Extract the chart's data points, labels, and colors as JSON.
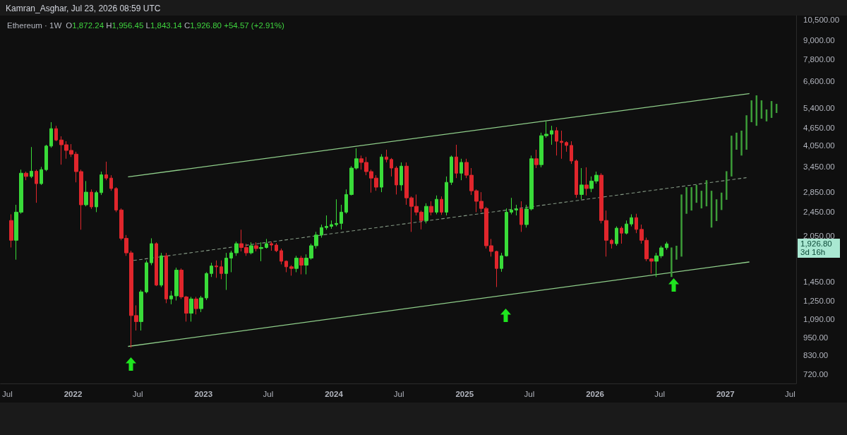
{
  "chart_data": {
    "type": "candlestick",
    "title": "Ethereum · 1W",
    "annotations": [
      "Kamran_Asghar, Jul 23, 2026 08:59 UTC",
      "O1,872.24 H1,956.45 L1,843.14 C1,926.80 +54.57 (+2.91%)",
      "1,926.80",
      "3d 16h"
    ],
    "log": true,
    "xlim": [
      "2021-06-12",
      "2027-07-18"
    ],
    "xticks": [
      {
        "value": "2021-07-01",
        "label": "Jul"
      },
      {
        "value": "2022-01-01",
        "label": "2022"
      },
      {
        "value": "2022-07-01",
        "label": "Jul"
      },
      {
        "value": "2023-01-01",
        "label": "2023"
      },
      {
        "value": "2023-07-01",
        "label": "Jul"
      },
      {
        "value": "2024-01-01",
        "label": "2024"
      },
      {
        "value": "2024-07-01",
        "label": "Jul"
      },
      {
        "value": "2025-01-01",
        "label": "2025"
      },
      {
        "value": "2025-07-01",
        "label": "Jul"
      },
      {
        "value": "2026-01-01",
        "label": "2026"
      },
      {
        "value": "2026-07-01",
        "label": "Jul"
      },
      {
        "value": "2027-01-01",
        "label": "2027"
      },
      {
        "value": "2027-07-01",
        "label": "Jul"
      }
    ],
    "ylim": [
      670,
      10850
    ],
    "yticks": [
      {
        "value": 720,
        "label": "720.00"
      },
      {
        "value": 830,
        "label": "830.00"
      },
      {
        "value": 950,
        "label": "950.00"
      },
      {
        "value": 1090,
        "label": "1,090.00"
      },
      {
        "value": 1250,
        "label": "1,250.00"
      },
      {
        "value": 1450,
        "label": "1,450.00"
      },
      {
        "value": 2050,
        "label": "2,050.00"
      },
      {
        "value": 2450,
        "label": "2,450.00"
      },
      {
        "value": 2850,
        "label": "2,850.00"
      },
      {
        "value": 3450,
        "label": "3,450.00"
      },
      {
        "value": 4050,
        "label": "4,050.00"
      },
      {
        "value": 4650,
        "label": "4,650.00"
      },
      {
        "value": 5400,
        "label": "5,400.00"
      },
      {
        "value": 6600,
        "label": "6,600.00"
      },
      {
        "value": 7800,
        "label": "7,800.00"
      },
      {
        "value": 9000,
        "label": "9,000.00"
      },
      {
        "value": 10500,
        "label": "10,500.00"
      }
    ],
    "series": [
      {
        "x": [
          "2021-07-12",
          "2021-07-26",
          "2021-08-09",
          "2021-08-23",
          "2021-09-06",
          "2021-09-20",
          "2021-10-04",
          "2021-10-18",
          "2021-11-01",
          "2021-11-15",
          "2021-11-29",
          "2021-12-13",
          "2021-12-27",
          "2022-01-10",
          "2022-01-24",
          "2022-02-07",
          "2022-02-21",
          "2022-03-07",
          "2022-03-21",
          "2022-04-04",
          "2022-04-18",
          "2022-05-02",
          "2022-05-16",
          "2022-05-30",
          "2022-06-13",
          "2022-06-27",
          "2022-07-11",
          "2022-07-25",
          "2022-08-08",
          "2022-08-22",
          "2022-09-05",
          "2022-09-19",
          "2022-10-03",
          "2022-10-17",
          "2022-10-31",
          "2022-11-14",
          "2022-11-28",
          "2022-12-12",
          "2022-12-26",
          "2023-01-09",
          "2023-01-23",
          "2023-02-06",
          "2023-02-20",
          "2023-03-06",
          "2023-03-20",
          "2023-04-03",
          "2023-04-17",
          "2023-05-01",
          "2023-05-15",
          "2023-05-29",
          "2023-06-12",
          "2023-06-26",
          "2023-07-10",
          "2023-07-24",
          "2023-08-07",
          "2023-08-21",
          "2023-09-04",
          "2023-09-18",
          "2023-10-02",
          "2023-10-16",
          "2023-10-30",
          "2023-11-13",
          "2023-11-27",
          "2023-12-11",
          "2023-12-25",
          "2024-01-08",
          "2024-01-22",
          "2024-02-05",
          "2024-02-19",
          "2024-03-04",
          "2024-03-18",
          "2024-04-01",
          "2024-04-15",
          "2024-04-29",
          "2024-05-13",
          "2024-05-27",
          "2024-06-10",
          "2024-06-24",
          "2024-07-08",
          "2024-07-22",
          "2024-08-05",
          "2024-08-19",
          "2024-09-02",
          "2024-09-16",
          "2024-09-30",
          "2024-10-14",
          "2024-10-28",
          "2024-11-11",
          "2024-11-25",
          "2024-12-09",
          "2024-12-23",
          "2025-01-06",
          "2025-01-20",
          "2025-02-03",
          "2025-02-17",
          "2025-03-03",
          "2025-03-17",
          "2025-03-31",
          "2025-04-14",
          "2025-04-28",
          "2025-05-12",
          "2025-05-26",
          "2025-06-09",
          "2025-06-23",
          "2025-07-07",
          "2025-07-21",
          "2025-08-04",
          "2025-08-18",
          "2025-09-01",
          "2025-09-15",
          "2025-09-29",
          "2025-10-13",
          "2025-10-27",
          "2025-11-10",
          "2025-11-24",
          "2025-12-08",
          "2025-12-22",
          "2026-01-05",
          "2026-01-19",
          "2026-02-02",
          "2026-02-16",
          "2026-03-02",
          "2026-03-16",
          "2026-03-30",
          "2026-04-13",
          "2026-04-27",
          "2026-05-11",
          "2026-05-25",
          "2026-06-08",
          "2026-06-22",
          "2026-07-06",
          "2026-07-20"
        ],
        "ohlc": [
          [
            2300,
            2410,
            1875,
            1980
          ],
          [
            1980,
            2590,
            1710,
            2450
          ],
          [
            2450,
            3380,
            2420,
            3290
          ],
          [
            3290,
            3330,
            3120,
            3210
          ],
          [
            3210,
            4010,
            3170,
            3340
          ],
          [
            3340,
            3380,
            2630,
            3040
          ],
          [
            3040,
            3450,
            3010,
            3380
          ],
          [
            3380,
            4080,
            3340,
            4040
          ],
          [
            4040,
            4840,
            3990,
            4610
          ],
          [
            4610,
            4710,
            4190,
            4230
          ],
          [
            4230,
            4350,
            3510,
            4080
          ],
          [
            4080,
            4190,
            3670,
            3910
          ],
          [
            3910,
            4100,
            3720,
            3800
          ],
          [
            3800,
            3870,
            3070,
            3330
          ],
          [
            3330,
            3380,
            2145,
            2590
          ],
          [
            2590,
            3100,
            2560,
            2850
          ],
          [
            2850,
            2910,
            2510,
            2550
          ],
          [
            2550,
            2880,
            2450,
            2840
          ],
          [
            2840,
            3330,
            2790,
            3250
          ],
          [
            3250,
            3590,
            3120,
            3170
          ],
          [
            3170,
            3240,
            2880,
            2930
          ],
          [
            2930,
            2960,
            2450,
            2490
          ],
          [
            2490,
            2520,
            1980,
            2010
          ],
          [
            2010,
            2060,
            1760,
            1800
          ],
          [
            1800,
            1830,
            878,
            1120
          ],
          [
            1120,
            1210,
            1000,
            1070
          ],
          [
            1070,
            1360,
            1000,
            1340
          ],
          [
            1340,
            1700,
            1325,
            1670
          ],
          [
            1670,
            2010,
            1640,
            1930
          ],
          [
            1930,
            1950,
            1400,
            1410
          ],
          [
            1410,
            1800,
            1390,
            1760
          ],
          [
            1760,
            1800,
            1230,
            1270
          ],
          [
            1270,
            1350,
            1220,
            1300
          ],
          [
            1300,
            1610,
            1255,
            1580
          ],
          [
            1580,
            1600,
            1270,
            1290
          ],
          [
            1290,
            1300,
            1070,
            1140
          ],
          [
            1140,
            1290,
            1070,
            1270
          ],
          [
            1270,
            1290,
            1130,
            1180
          ],
          [
            1180,
            1300,
            1150,
            1280
          ],
          [
            1280,
            1555,
            1260,
            1540
          ],
          [
            1540,
            1670,
            1500,
            1630
          ],
          [
            1630,
            1700,
            1490,
            1620
          ],
          [
            1620,
            1700,
            1475,
            1540
          ],
          [
            1540,
            1800,
            1360,
            1730
          ],
          [
            1730,
            1830,
            1555,
            1800
          ],
          [
            1800,
            1960,
            1760,
            1930
          ],
          [
            1930,
            2145,
            1820,
            1875
          ],
          [
            1875,
            1930,
            1760,
            1800
          ],
          [
            1800,
            1950,
            1780,
            1900
          ],
          [
            1900,
            1950,
            1820,
            1860
          ],
          [
            1860,
            1950,
            1690,
            1875
          ],
          [
            1875,
            2000,
            1860,
            1930
          ],
          [
            1930,
            1960,
            1830,
            1910
          ],
          [
            1910,
            1940,
            1810,
            1830
          ],
          [
            1830,
            1860,
            1650,
            1690
          ],
          [
            1690,
            1700,
            1555,
            1620
          ],
          [
            1620,
            1640,
            1515,
            1600
          ],
          [
            1600,
            1760,
            1555,
            1730
          ],
          [
            1730,
            1760,
            1530,
            1640
          ],
          [
            1640,
            1780,
            1530,
            1730
          ],
          [
            1730,
            1930,
            1710,
            1900
          ],
          [
            1900,
            2110,
            1860,
            2060
          ],
          [
            2060,
            2230,
            2020,
            2180
          ],
          [
            2180,
            2390,
            2145,
            2200
          ],
          [
            2200,
            2300,
            2160,
            2230
          ],
          [
            2230,
            2700,
            2200,
            2250
          ],
          [
            2250,
            2590,
            2150,
            2450
          ],
          [
            2450,
            2910,
            2420,
            2800
          ],
          [
            2800,
            3470,
            2780,
            3420
          ],
          [
            3420,
            3970,
            3380,
            3670
          ],
          [
            3670,
            3760,
            3380,
            3570
          ],
          [
            3570,
            3720,
            3240,
            3330
          ],
          [
            3330,
            3380,
            2840,
            3170
          ],
          [
            3170,
            3240,
            2880,
            2960
          ],
          [
            2960,
            3800,
            2850,
            3720
          ],
          [
            3720,
            3930,
            3570,
            3650
          ],
          [
            3650,
            3690,
            3210,
            3420
          ],
          [
            3420,
            3470,
            2800,
            3010
          ],
          [
            3010,
            3570,
            2880,
            3470
          ],
          [
            3470,
            3570,
            2590,
            2730
          ],
          [
            2730,
            2760,
            2110,
            2560
          ],
          [
            2560,
            2800,
            2390,
            2450
          ],
          [
            2450,
            2480,
            2150,
            2300
          ],
          [
            2300,
            2620,
            2250,
            2560
          ],
          [
            2560,
            2660,
            2390,
            2450
          ],
          [
            2450,
            2780,
            2410,
            2700
          ],
          [
            2700,
            2760,
            2400,
            2450
          ],
          [
            2450,
            3210,
            2390,
            3070
          ],
          [
            3070,
            3760,
            3010,
            3720
          ],
          [
            3720,
            4080,
            3170,
            3290
          ],
          [
            3290,
            3670,
            3120,
            3570
          ],
          [
            3570,
            3670,
            3170,
            3240
          ],
          [
            3240,
            3420,
            2790,
            2880
          ],
          [
            2880,
            2910,
            2450,
            2660
          ],
          [
            2660,
            2850,
            2450,
            2520
          ],
          [
            2520,
            2550,
            1860,
            1900
          ],
          [
            1900,
            2000,
            1750,
            1820
          ],
          [
            1820,
            1830,
            1390,
            1600
          ],
          [
            1600,
            1800,
            1560,
            1760
          ],
          [
            1760,
            2520,
            1750,
            2450
          ],
          [
            2450,
            2730,
            2410,
            2490
          ],
          [
            2490,
            2590,
            2390,
            2510
          ],
          [
            2510,
            2660,
            2110,
            2230
          ],
          [
            2230,
            2590,
            2180,
            2510
          ],
          [
            2510,
            3760,
            2480,
            3670
          ],
          [
            3670,
            3930,
            3420,
            3510
          ],
          [
            3510,
            4470,
            3440,
            4370
          ],
          [
            4370,
            4870,
            4300,
            4420
          ],
          [
            4420,
            4710,
            4080,
            4540
          ],
          [
            4540,
            4660,
            3760,
            4190
          ],
          [
            4190,
            4540,
            3670,
            4150
          ],
          [
            4150,
            4190,
            3870,
            4060
          ],
          [
            4060,
            4190,
            3530,
            3610
          ],
          [
            3610,
            3650,
            2730,
            2800
          ],
          [
            2800,
            3420,
            2700,
            3010
          ],
          [
            3010,
            3440,
            2780,
            2930
          ],
          [
            2930,
            3210,
            2850,
            3100
          ],
          [
            3100,
            3330,
            3040,
            3240
          ],
          [
            3240,
            3290,
            2250,
            2300
          ],
          [
            2300,
            2480,
            1750,
            1980
          ],
          [
            1980,
            2000,
            1860,
            1930
          ],
          [
            1930,
            2200,
            1900,
            2170
          ],
          [
            2170,
            2200,
            1930,
            2090
          ],
          [
            2090,
            2300,
            2070,
            2240
          ],
          [
            2240,
            2410,
            2200,
            2350
          ],
          [
            2350,
            2420,
            2090,
            2150
          ],
          [
            2150,
            2230,
            1930,
            1980
          ],
          [
            1980,
            2020,
            1690,
            1720
          ],
          [
            1720,
            1730,
            1540,
            1690
          ],
          [
            1690,
            1800,
            1500,
            1760
          ],
          [
            1760,
            1900,
            1730,
            1870
          ],
          [
            1872.24,
            1956.45,
            1843.14,
            1926.8
          ]
        ],
        "colors": [
          "#e0262c",
          "#39db39",
          "#39db39",
          "#e0262c",
          "#39db39",
          "#e0262c",
          "#39db39",
          "#39db39",
          "#39db39",
          "#e0262c",
          "#e0262c",
          "#e0262c",
          "#e0262c",
          "#e0262c",
          "#e0262c",
          "#39db39",
          "#e0262c",
          "#39db39",
          "#39db39",
          "#e0262c",
          "#e0262c",
          "#e0262c",
          "#e0262c",
          "#e0262c",
          "#e0262c",
          "#e0262c",
          "#39db39",
          "#39db39",
          "#39db39",
          "#e0262c",
          "#39db39",
          "#e0262c",
          "#39db39",
          "#39db39",
          "#e0262c",
          "#e0262c",
          "#39db39",
          "#e0262c",
          "#39db39",
          "#39db39",
          "#39db39",
          "#e0262c",
          "#e0262c",
          "#39db39",
          "#39db39",
          "#39db39",
          "#e0262c",
          "#e0262c",
          "#39db39",
          "#e0262c",
          "#39db39",
          "#39db39",
          "#e0262c",
          "#e0262c",
          "#e0262c",
          "#e0262c",
          "#e0262c",
          "#39db39",
          "#e0262c",
          "#39db39",
          "#39db39",
          "#39db39",
          "#39db39",
          "#39db39",
          "#39db39",
          "#39db39",
          "#39db39",
          "#39db39",
          "#39db39",
          "#39db39",
          "#e0262c",
          "#e0262c",
          "#e0262c",
          "#e0262c",
          "#39db39",
          "#e0262c",
          "#e0262c",
          "#e0262c",
          "#39db39",
          "#e0262c",
          "#e0262c",
          "#e0262c",
          "#e0262c",
          "#39db39",
          "#e0262c",
          "#39db39",
          "#e0262c",
          "#39db39",
          "#39db39",
          "#e0262c",
          "#39db39",
          "#e0262c",
          "#e0262c",
          "#e0262c",
          "#e0262c",
          "#e0262c",
          "#e0262c",
          "#e0262c",
          "#39db39",
          "#39db39",
          "#39db39",
          "#39db39",
          "#e0262c",
          "#39db39",
          "#39db39",
          "#e0262c",
          "#39db39",
          "#39db39",
          "#39db39",
          "#e0262c",
          "#e0262c",
          "#e0262c",
          "#e0262c",
          "#e0262c",
          "#39db39",
          "#e0262c",
          "#39db39",
          "#39db39",
          "#e0262c",
          "#e0262c",
          "#e0262c",
          "#39db39",
          "#e0262c",
          "#39db39",
          "#39db39",
          "#e0262c",
          "#e0262c",
          "#e0262c",
          "#e0262c",
          "#39db39",
          "#39db39",
          "#39db39"
        ]
      },
      {
        "type": "bar",
        "color": "#3c9c38",
        "x": [
          "2026-08-03",
          "2026-08-17",
          "2026-08-31",
          "2026-09-14",
          "2026-09-28",
          "2026-10-12",
          "2026-10-26",
          "2026-11-09",
          "2026-11-23",
          "2026-12-07",
          "2026-12-21",
          "2027-01-04",
          "2027-01-18",
          "2027-02-01",
          "2027-02-15",
          "2027-03-01",
          "2027-03-15",
          "2027-03-29",
          "2027-04-12",
          "2027-04-26",
          "2027-05-10",
          "2027-05-24"
        ],
        "base": [
          1500,
          1710,
          1750,
          2420,
          2480,
          2630,
          2520,
          2560,
          2180,
          2290,
          2490,
          2690,
          3210,
          3930,
          3760,
          3930,
          4840,
          4710,
          4970,
          4870,
          5000,
          5190
        ],
        "values": [
          375,
          190,
          1050,
          540,
          480,
          380,
          360,
          560,
          700,
          410,
          350,
          650,
          1160,
          540,
          780,
          1170,
          870,
          1220,
          740,
          460,
          680,
          370
        ]
      },
      {
        "type": "line",
        "color": "#8fce8a",
        "line_style": "solid",
        "x": [
          "2022-06-05",
          "2027-03-08"
        ],
        "values": [
          3200,
          6010
        ]
      },
      {
        "type": "line",
        "color": "#8fce8a",
        "line_style": "solid",
        "x": [
          "2022-06-05",
          "2027-03-08"
        ],
        "values": [
          887,
          1680
        ]
      },
      {
        "type": "line",
        "color": "#849884",
        "line_style": "dashed",
        "x": [
          "2022-06-20",
          "2027-02-28"
        ],
        "values": [
          1700,
          3180
        ]
      }
    ]
  }
}
